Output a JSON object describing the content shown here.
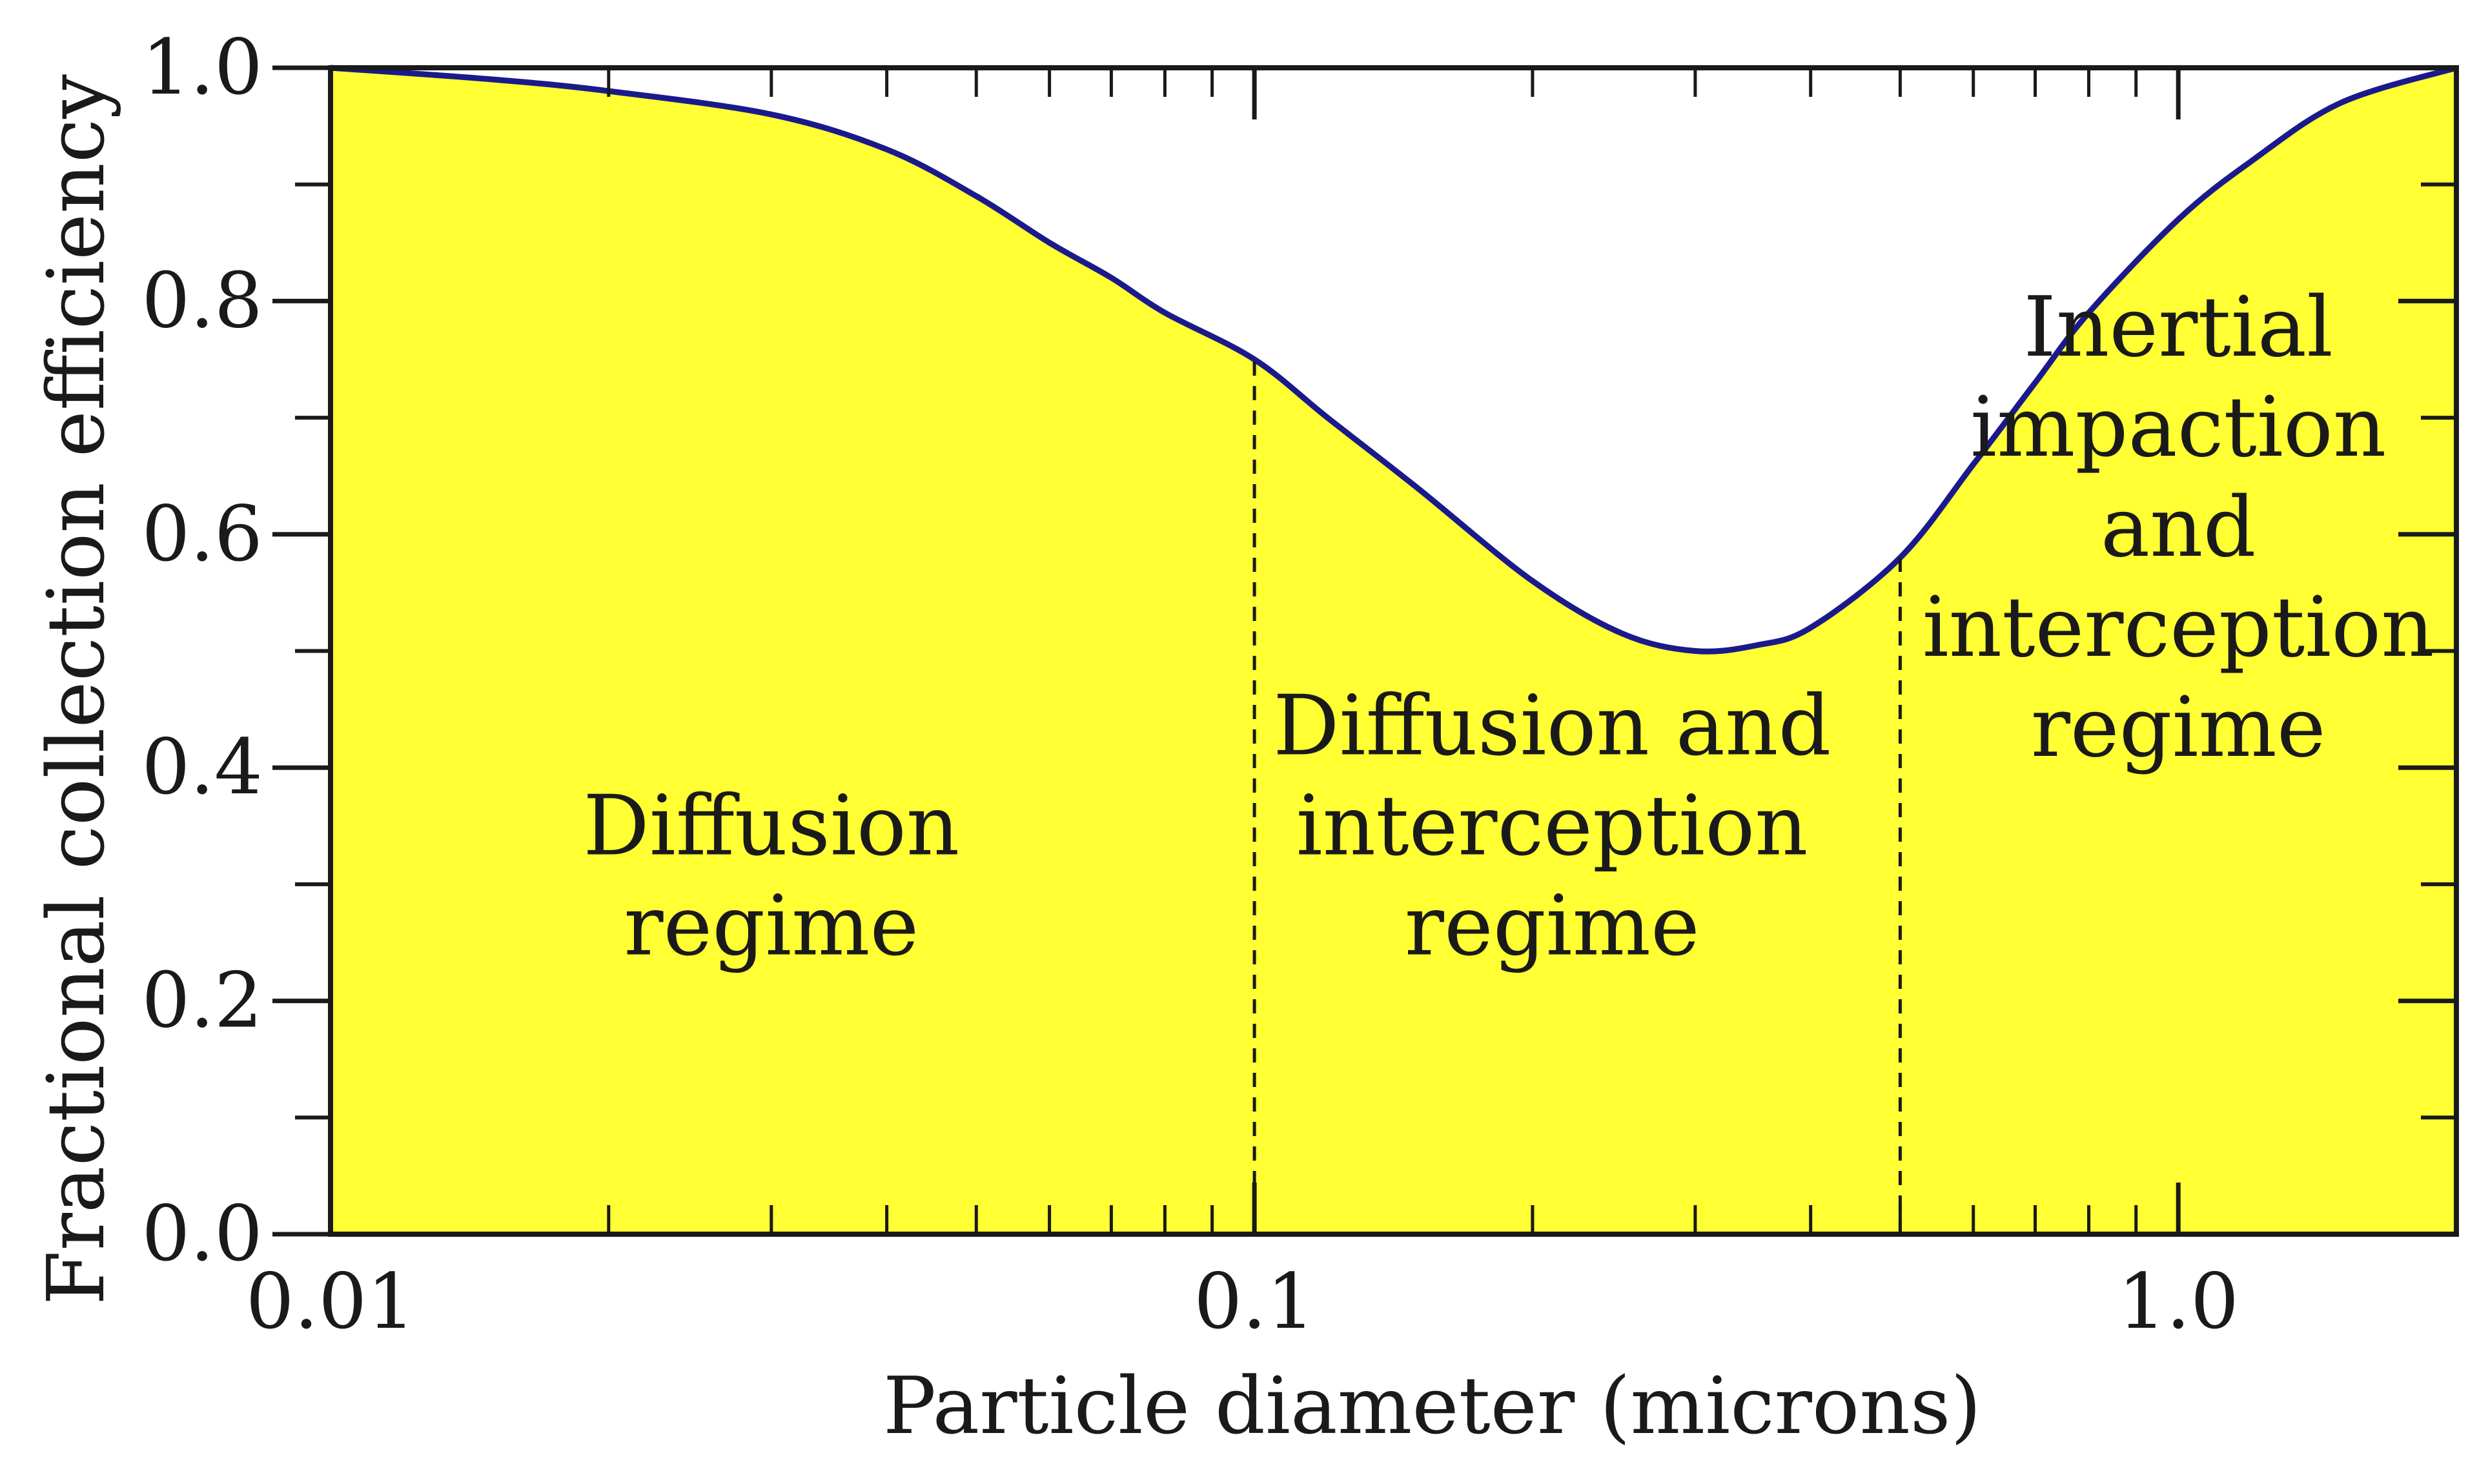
{
  "chart_data": {
    "type": "area",
    "xlabel": "Particle diameter (microns)",
    "ylabel": "Fractional collection efficiency",
    "x_scale": "log",
    "xlim": [
      0.01,
      2.0
    ],
    "ylim": [
      0.0,
      1.0
    ],
    "x_ticks": [
      {
        "value": 0.01,
        "label": "0.01"
      },
      {
        "value": 0.1,
        "label": "0.1"
      },
      {
        "value": 1.0,
        "label": "1.0"
      }
    ],
    "y_ticks": [
      {
        "value": 0.0,
        "label": "0.0"
      },
      {
        "value": 0.2,
        "label": "0.2"
      },
      {
        "value": 0.4,
        "label": "0.4"
      },
      {
        "value": 0.6,
        "label": "0.6"
      },
      {
        "value": 0.8,
        "label": "0.8"
      },
      {
        "value": 1.0,
        "label": "1.0"
      }
    ],
    "grid": false,
    "fill_color": "#ffff33",
    "line_color": "#1a1a8c",
    "series": [
      {
        "x": [
          0.01,
          0.015,
          0.02,
          0.03,
          0.04,
          0.05,
          0.06,
          0.07,
          0.08,
          0.1,
          0.12,
          0.15,
          0.2,
          0.25,
          0.3,
          0.35,
          0.4,
          0.5,
          0.6,
          0.7,
          0.8,
          1.0,
          1.2,
          1.5,
          2.0
        ],
        "y": [
          1.0,
          0.99,
          0.98,
          0.96,
          0.93,
          0.89,
          0.85,
          0.82,
          0.79,
          0.75,
          0.7,
          0.64,
          0.56,
          0.515,
          0.5,
          0.505,
          0.52,
          0.58,
          0.66,
          0.73,
          0.79,
          0.87,
          0.92,
          0.97,
          1.0
        ]
      }
    ],
    "boundaries": [
      0.1,
      0.5
    ],
    "regions": [
      {
        "lines": [
          "Diffusion",
          "regime"
        ],
        "x": 0.03,
        "y": 0.24
      },
      {
        "lines": [
          "Diffusion and",
          "interception",
          "regime"
        ],
        "x": 0.21,
        "y": 0.24
      },
      {
        "lines": [
          "Inertial",
          "impaction",
          "and",
          "interception",
          "regime"
        ],
        "x": 1.0,
        "y": 0.41
      }
    ]
  }
}
